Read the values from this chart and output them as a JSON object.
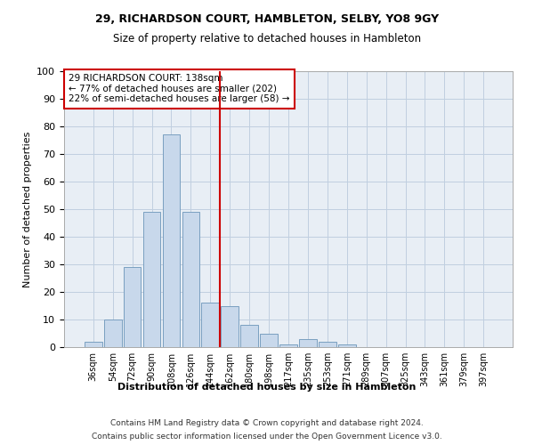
{
  "title1": "29, RICHARDSON COURT, HAMBLETON, SELBY, YO8 9GY",
  "title2": "Size of property relative to detached houses in Hambleton",
  "xlabel": "Distribution of detached houses by size in Hambleton",
  "ylabel": "Number of detached properties",
  "footer1": "Contains HM Land Registry data © Crown copyright and database right 2024.",
  "footer2": "Contains public sector information licensed under the Open Government Licence v3.0.",
  "bar_color": "#c8d8eb",
  "bar_edge_color": "#7a9fc0",
  "grid_color": "#c0cfe0",
  "background_color": "#e8eef5",
  "vline_color": "#cc0000",
  "bins": [
    "36sqm",
    "54sqm",
    "72sqm",
    "90sqm",
    "108sqm",
    "126sqm",
    "144sqm",
    "162sqm",
    "180sqm",
    "198sqm",
    "217sqm",
    "235sqm",
    "253sqm",
    "271sqm",
    "289sqm",
    "307sqm",
    "325sqm",
    "343sqm",
    "361sqm",
    "379sqm",
    "397sqm"
  ],
  "values": [
    2,
    10,
    29,
    49,
    77,
    49,
    16,
    15,
    8,
    5,
    1,
    3,
    2,
    1,
    0,
    0,
    0,
    0,
    0,
    0,
    0
  ],
  "vline_x": 6.5,
  "annotation_text": "29 RICHARDSON COURT: 138sqm\n← 77% of detached houses are smaller (202)\n22% of semi-detached houses are larger (58) →",
  "ylim": [
    0,
    100
  ],
  "yticks": [
    0,
    10,
    20,
    30,
    40,
    50,
    60,
    70,
    80,
    90,
    100
  ]
}
